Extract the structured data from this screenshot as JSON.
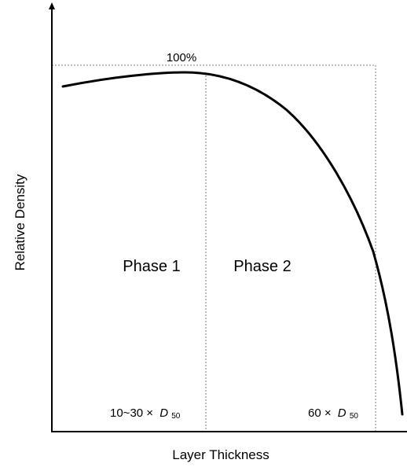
{
  "chart_data": {
    "type": "line",
    "xlabel": "Layer Thickness",
    "ylabel": "Relative Density",
    "grid": false,
    "peak_label": "100%",
    "regions": [
      {
        "label": "Phase 1"
      },
      {
        "label": "Phase 2"
      }
    ],
    "markers": [
      {
        "prefix": "10~30 ×",
        "symbol": "D",
        "subscript": "50"
      },
      {
        "prefix": "60 ×",
        "symbol": "D",
        "subscript": "50"
      }
    ],
    "curve_color": "#000000",
    "guide_color": "#808080"
  }
}
